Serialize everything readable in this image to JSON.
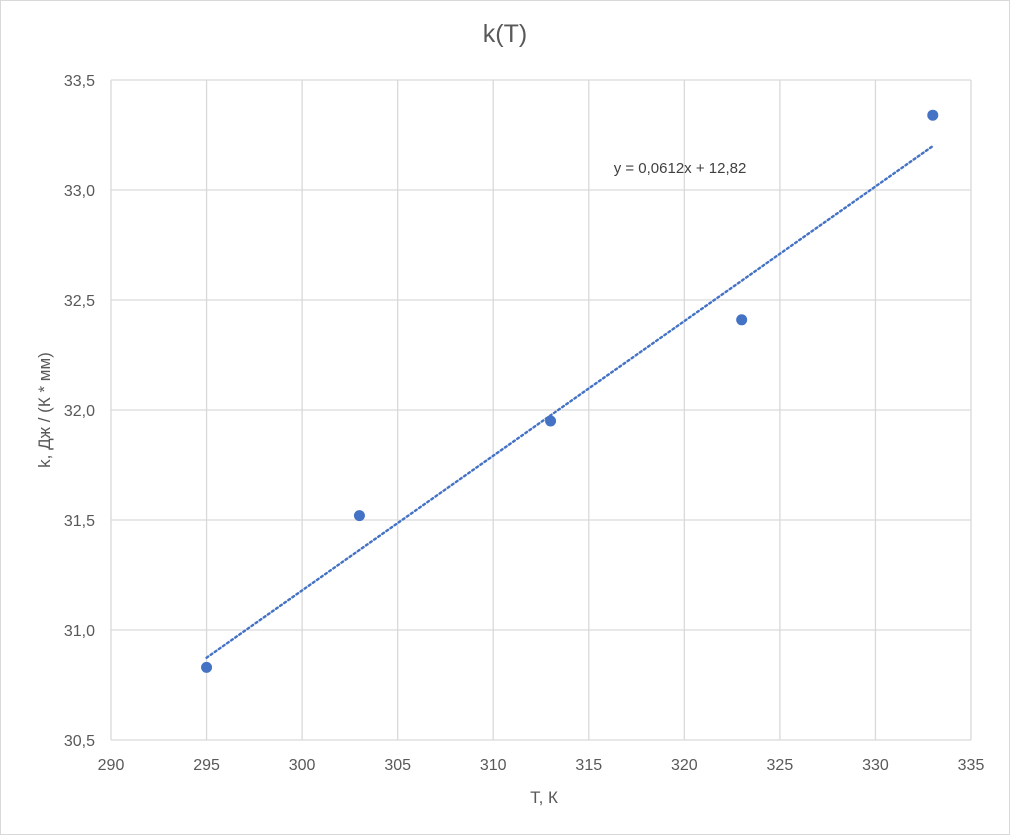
{
  "chart_data": {
    "type": "scatter",
    "title": "k(T)",
    "xlabel": "T, К",
    "ylabel": "k, Дж / (К * мм)",
    "xlim": [
      290,
      335
    ],
    "ylim": [
      30.5,
      33.5
    ],
    "xticks": [
      290,
      295,
      300,
      305,
      310,
      315,
      320,
      325,
      330,
      335
    ],
    "yticks": [
      30.5,
      31.0,
      31.5,
      32.0,
      32.5,
      33.0,
      33.5
    ],
    "xtick_labels": [
      "290",
      "295",
      "300",
      "305",
      "310",
      "315",
      "320",
      "325",
      "330",
      "335"
    ],
    "ytick_labels": [
      "30,5",
      "31,0",
      "31,5",
      "32,0",
      "32,5",
      "33,0",
      "33,5"
    ],
    "grid": true,
    "series": [
      {
        "x": [
          295,
          303,
          313,
          323,
          333
        ],
        "y": [
          30.83,
          31.52,
          31.95,
          32.41,
          33.34
        ],
        "color": "#4472c4"
      }
    ],
    "trendline": {
      "type": "linear",
      "slope": 0.0612,
      "intercept": 12.82,
      "x_range": [
        295,
        333
      ],
      "color": "#4472c4",
      "style": "dotted",
      "equation": "y = 0,0612x + 12,82"
    }
  }
}
